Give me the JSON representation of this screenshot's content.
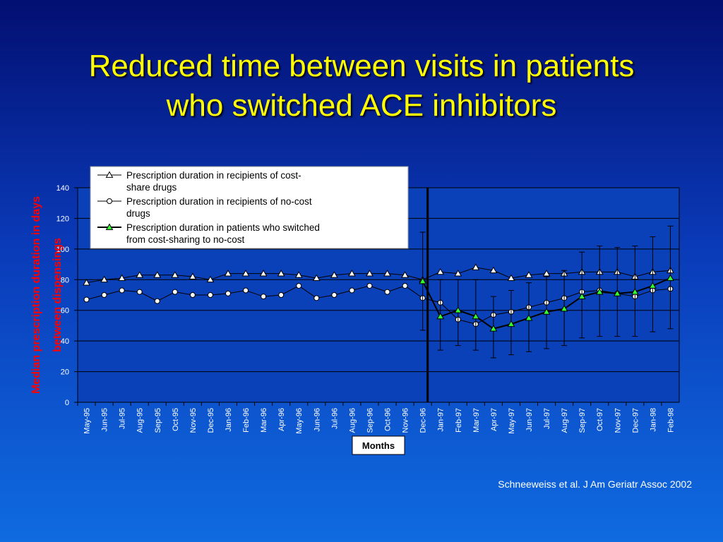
{
  "slide": {
    "title_line1": "Reduced time between visits in patients",
    "title_line2": "who switched ACE inhibitors",
    "citation": "Schneeweiss et al. J Am Geriatr Assoc 2002"
  },
  "colors": {
    "title": "#ffff00",
    "ylabel": "#ff0000",
    "marker_switch": "#33ff33",
    "plot_bg": "#0a40b8",
    "line": "#000000"
  },
  "chart_data": {
    "type": "line",
    "ylabel_line1": "Median prescription duration in days",
    "ylabel_line2": "between dispensings",
    "xlabel": "Months",
    "ylim": [
      0,
      140
    ],
    "yticks": [
      0,
      20,
      40,
      60,
      80,
      100,
      120,
      140
    ],
    "grid": true,
    "legend_position": "top-left inside plot",
    "vertical_marker_category": "Dec-96",
    "categories": [
      "May-95",
      "Jun-95",
      "Jul-95",
      "Aug-95",
      "Sep-95",
      "Oct-95",
      "Nov-95",
      "Dec-95",
      "Jan-96",
      "Feb-96",
      "Mar-96",
      "Apr-96",
      "May-96",
      "Jun-96",
      "Jul-96",
      "Aug-96",
      "Sep-96",
      "Oct-96",
      "Nov-96",
      "Dec-96",
      "Jan-97",
      "Feb-97",
      "Mar-97",
      "Apr-97",
      "May-97",
      "Jun-97",
      "Jul-97",
      "Aug-97",
      "Sep-97",
      "Oct-97",
      "Nov-97",
      "Dec-97",
      "Jan-98",
      "Feb-98"
    ],
    "series": [
      {
        "name": "Prescription duration in recipients of cost-share drugs",
        "legend_line1": "Prescription duration in recipients of cost-",
        "legend_line2": "share drugs",
        "marker": "triangle-open",
        "values": [
          78,
          80,
          81,
          83,
          83,
          83,
          82,
          80,
          84,
          84,
          84,
          84,
          83,
          81,
          83,
          84,
          84,
          84,
          83,
          80,
          85,
          84,
          88,
          86,
          81,
          83,
          84,
          84,
          85,
          85,
          85,
          82,
          85,
          86
        ]
      },
      {
        "name": "Prescription duration in recipients of no-cost drugs",
        "legend_line1": "Prescription duration in recipients of no-cost",
        "legend_line2": "drugs",
        "marker": "circle-open",
        "values": [
          67,
          70,
          73,
          72,
          66,
          72,
          70,
          70,
          71,
          73,
          69,
          70,
          76,
          68,
          70,
          73,
          76,
          72,
          76,
          68,
          65,
          54,
          51,
          57,
          59,
          62,
          65,
          68,
          72,
          73,
          71,
          69,
          73,
          74
        ]
      },
      {
        "name": "Prescription duration in patients who switched from cost-sharing to no-cost",
        "legend_line1": "Prescription duration in patients who switched",
        "legend_line2": "from cost-sharing to no-cost",
        "marker": "triangle-filled",
        "start_index": 19,
        "values": [
          null,
          null,
          null,
          null,
          null,
          null,
          null,
          null,
          null,
          null,
          null,
          null,
          null,
          null,
          null,
          null,
          null,
          null,
          null,
          79,
          56,
          60,
          56,
          48,
          51,
          55,
          59,
          61,
          69,
          72,
          71,
          72,
          76,
          81
        ],
        "error_low": [
          null,
          null,
          null,
          null,
          null,
          null,
          null,
          null,
          null,
          null,
          null,
          null,
          null,
          null,
          null,
          null,
          null,
          null,
          null,
          47,
          34,
          37,
          34,
          29,
          31,
          33,
          35,
          37,
          42,
          43,
          43,
          43,
          46,
          48
        ],
        "error_high": [
          null,
          null,
          null,
          null,
          null,
          null,
          null,
          null,
          null,
          null,
          null,
          null,
          null,
          null,
          null,
          null,
          null,
          null,
          null,
          111,
          80,
          80,
          80,
          69,
          73,
          78,
          82,
          86,
          98,
          102,
          101,
          102,
          108,
          115
        ]
      }
    ]
  }
}
